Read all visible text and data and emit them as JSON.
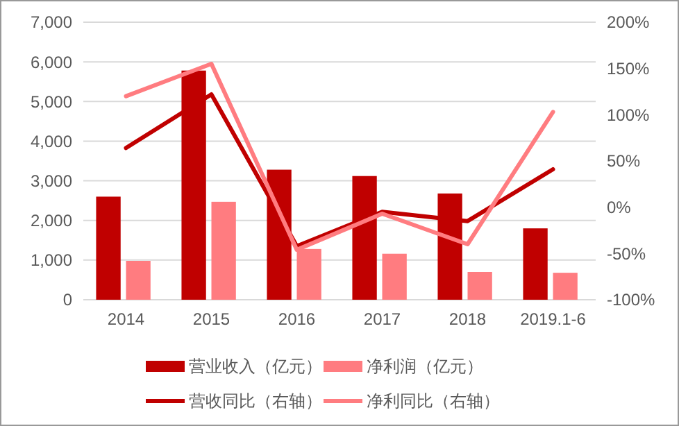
{
  "chart_data": {
    "type": "bar",
    "categories": [
      "2014",
      "2015",
      "2016",
      "2017",
      "2018",
      "2019.1-6"
    ],
    "series": [
      {
        "name": "营业收入（亿元）",
        "color": "#c00000",
        "values": [
          2600,
          5780,
          3280,
          3120,
          2680,
          1800
        ]
      },
      {
        "name": "净利润（亿元）",
        "color": "#ff7c80",
        "values": [
          980,
          2470,
          1280,
          1160,
          700,
          680
        ]
      },
      {
        "name": "营收同比（右轴）",
        "type": "line",
        "axis": "y2",
        "color": "#c00000",
        "values": [
          64,
          122,
          -42,
          -5,
          -15,
          41
        ]
      },
      {
        "name": "净利同比（右轴）",
        "type": "line",
        "axis": "y2",
        "color": "#ff7c80",
        "values": [
          120,
          155,
          -46,
          -7,
          -40,
          103
        ]
      }
    ],
    "ylim": [
      0,
      7000
    ],
    "yticks": [
      {
        "value": 0,
        "label": "0"
      },
      {
        "value": 1000,
        "label": "1,000"
      },
      {
        "value": 2000,
        "label": "2,000"
      },
      {
        "value": 3000,
        "label": "3,000"
      },
      {
        "value": 4000,
        "label": "4,000"
      },
      {
        "value": 5000,
        "label": "5,000"
      },
      {
        "value": 6000,
        "label": "6,000"
      },
      {
        "value": 7000,
        "label": "7,000"
      }
    ],
    "y2lim": [
      -100,
      200
    ],
    "y2ticks": [
      {
        "value": -100,
        "label": "-100%"
      },
      {
        "value": -50,
        "label": "-50%"
      },
      {
        "value": 0,
        "label": "0%"
      },
      {
        "value": 50,
        "label": "50%"
      },
      {
        "value": 100,
        "label": "100%"
      },
      {
        "value": 150,
        "label": "150%"
      },
      {
        "value": 200,
        "label": "200%"
      }
    ],
    "grid": "y",
    "legend": "bottom"
  }
}
